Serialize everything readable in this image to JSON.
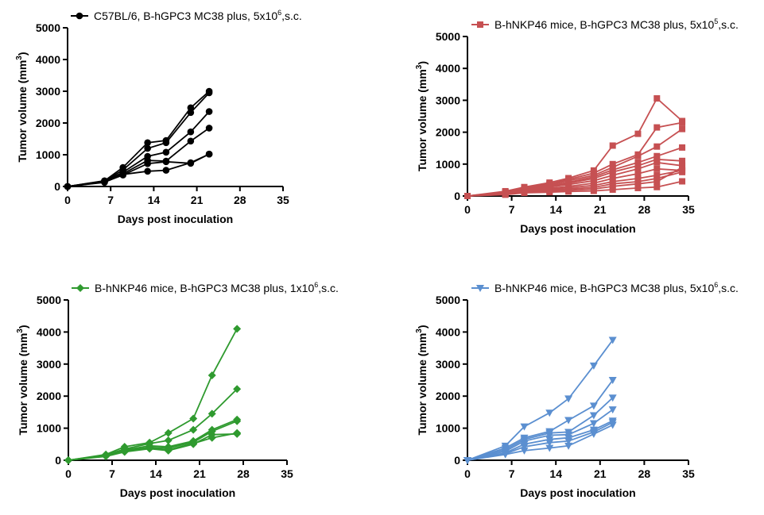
{
  "chart_data": [
    {
      "type": "line",
      "color": "#000000",
      "marker": "circle",
      "legend": {
        "text": "C57BL/6, B-hGPC3 MC38 plus, 5x10",
        "sup": "6",
        "suffix": ",s.c."
      },
      "xlabel": "Days post inoculation",
      "ylabel": "Tumor volume (mm",
      "ylabel_sup": "3",
      "ylabel_suffix": ")",
      "xlim": [
        0,
        35
      ],
      "ylim": [
        0,
        5000
      ],
      "xticks": [
        0,
        7,
        14,
        21,
        28,
        35
      ],
      "yticks": [
        0,
        1000,
        2000,
        3000,
        4000,
        5000
      ],
      "x": [
        0,
        6,
        9,
        13,
        16,
        20,
        23
      ],
      "series": [
        {
          "values": [
            0,
            180,
            600,
            1380,
            1450,
            2480,
            3000
          ]
        },
        {
          "values": [
            0,
            170,
            520,
            1200,
            1380,
            2330,
            2950
          ]
        },
        {
          "values": [
            0,
            160,
            450,
            950,
            1080,
            1720,
            2360
          ]
        },
        {
          "values": [
            0,
            150,
            400,
            820,
            800,
            1430,
            1840
          ]
        },
        {
          "values": [
            0,
            140,
            360,
            720,
            780,
            730,
            1020
          ]
        },
        {
          "values": [
            0,
            130,
            380,
            480,
            510,
            750,
            1020
          ]
        }
      ]
    },
    {
      "type": "line",
      "color": "#c65052",
      "marker": "square",
      "legend": {
        "text": "B-hNKP46 mice, B-hGPC3 MC38 plus, 5x10",
        "sup": "5",
        "suffix": ",s.c."
      },
      "xlabel": "Days post inoculation",
      "ylabel": "Tumor volume (mm",
      "ylabel_sup": "3",
      "ylabel_suffix": ")",
      "xlim": [
        0,
        35
      ],
      "ylim": [
        0,
        5000
      ],
      "xticks": [
        0,
        7,
        14,
        21,
        28,
        35
      ],
      "yticks": [
        0,
        1000,
        2000,
        3000,
        4000,
        5000
      ],
      "x": [
        0,
        6,
        9,
        13,
        16,
        20,
        23,
        27,
        30,
        34
      ],
      "series": [
        {
          "values": [
            0,
            150,
            280,
            420,
            560,
            800,
            1580,
            1950,
            3060,
            2350
          ]
        },
        {
          "values": [
            0,
            130,
            260,
            380,
            520,
            720,
            1000,
            1300,
            2150,
            2300
          ]
        },
        {
          "values": [
            0,
            120,
            240,
            350,
            480,
            650,
            900,
            1250,
            1550,
            2100
          ]
        },
        {
          "values": [
            0,
            110,
            220,
            320,
            430,
            600,
            820,
            1050,
            1250,
            1520
          ]
        },
        {
          "values": [
            0,
            100,
            200,
            300,
            400,
            550,
            750,
            950,
            1150,
            1100
          ]
        },
        {
          "values": [
            0,
            90,
            190,
            280,
            360,
            480,
            650,
            850,
            1050,
            950
          ]
        },
        {
          "values": [
            0,
            80,
            170,
            240,
            300,
            400,
            550,
            700,
            850,
            800
          ]
        },
        {
          "values": [
            0,
            70,
            150,
            210,
            260,
            330,
            450,
            550,
            650,
            800
          ]
        },
        {
          "values": [
            0,
            60,
            130,
            180,
            220,
            270,
            380,
            450,
            550,
            750
          ]
        },
        {
          "values": [
            0,
            50,
            110,
            150,
            180,
            220,
            300,
            380,
            450,
            900
          ]
        },
        {
          "values": [
            0,
            40,
            100,
            120,
            140,
            160,
            200,
            250,
            280,
            460
          ]
        }
      ]
    },
    {
      "type": "line",
      "color": "#2f9a2f",
      "marker": "diamond",
      "legend": {
        "text": "B-hNKP46 mice, B-hGPC3 MC38 plus, 1x10",
        "sup": "6",
        "suffix": ",s.c."
      },
      "xlabel": "Days post inoculation",
      "ylabel": "Tumor volume (mm",
      "ylabel_sup": "3",
      "ylabel_suffix": ")",
      "xlim": [
        0,
        35
      ],
      "ylim": [
        0,
        5000
      ],
      "xticks": [
        0,
        7,
        14,
        21,
        28,
        35
      ],
      "yticks": [
        0,
        1000,
        2000,
        3000,
        4000,
        5000
      ],
      "x": [
        0,
        6,
        9,
        13,
        16,
        20,
        23,
        27
      ],
      "series": [
        {
          "values": [
            0,
            180,
            420,
            550,
            850,
            1300,
            2650,
            4100
          ]
        },
        {
          "values": [
            0,
            160,
            350,
            520,
            620,
            950,
            1450,
            2220
          ]
        },
        {
          "values": [
            0,
            150,
            320,
            450,
            420,
            600,
            950,
            1270
          ]
        },
        {
          "values": [
            0,
            140,
            300,
            400,
            380,
            560,
            900,
            1220
          ]
        },
        {
          "values": [
            0,
            130,
            280,
            380,
            330,
            520,
            700,
            850
          ]
        },
        {
          "values": [
            0,
            120,
            260,
            360,
            300,
            500,
            800,
            820
          ]
        }
      ]
    },
    {
      "type": "line",
      "color": "#5b8fd0",
      "marker": "triangle-down",
      "legend": {
        "text": "B-hNKP46 mice, B-hGPC3 MC38 plus, 5x10",
        "sup": "6",
        "suffix": ",s.c."
      },
      "xlabel": "Days post inoculation",
      "ylabel": "Tumor volume (mm",
      "ylabel_sup": "3",
      "ylabel_suffix": ")",
      "xlim": [
        0,
        35
      ],
      "ylim": [
        0,
        5000
      ],
      "xticks": [
        0,
        7,
        14,
        21,
        28,
        35
      ],
      "yticks": [
        0,
        1000,
        2000,
        3000,
        4000,
        5000
      ],
      "x": [
        0,
        6,
        9,
        13,
        16,
        20,
        23
      ],
      "series": [
        {
          "values": [
            0,
            450,
            1050,
            1480,
            1920,
            2950,
            3750
          ]
        },
        {
          "values": [
            0,
            380,
            700,
            900,
            1250,
            1700,
            2500
          ]
        },
        {
          "values": [
            0,
            330,
            650,
            850,
            880,
            1400,
            1950
          ]
        },
        {
          "values": [
            0,
            280,
            600,
            780,
            800,
            1150,
            1580
          ]
        },
        {
          "values": [
            0,
            230,
            500,
            650,
            700,
            950,
            1230
          ]
        },
        {
          "values": [
            0,
            200,
            420,
            550,
            600,
            880,
            1180
          ]
        },
        {
          "values": [
            0,
            180,
            300,
            380,
            450,
            820,
            1100
          ]
        }
      ]
    }
  ]
}
